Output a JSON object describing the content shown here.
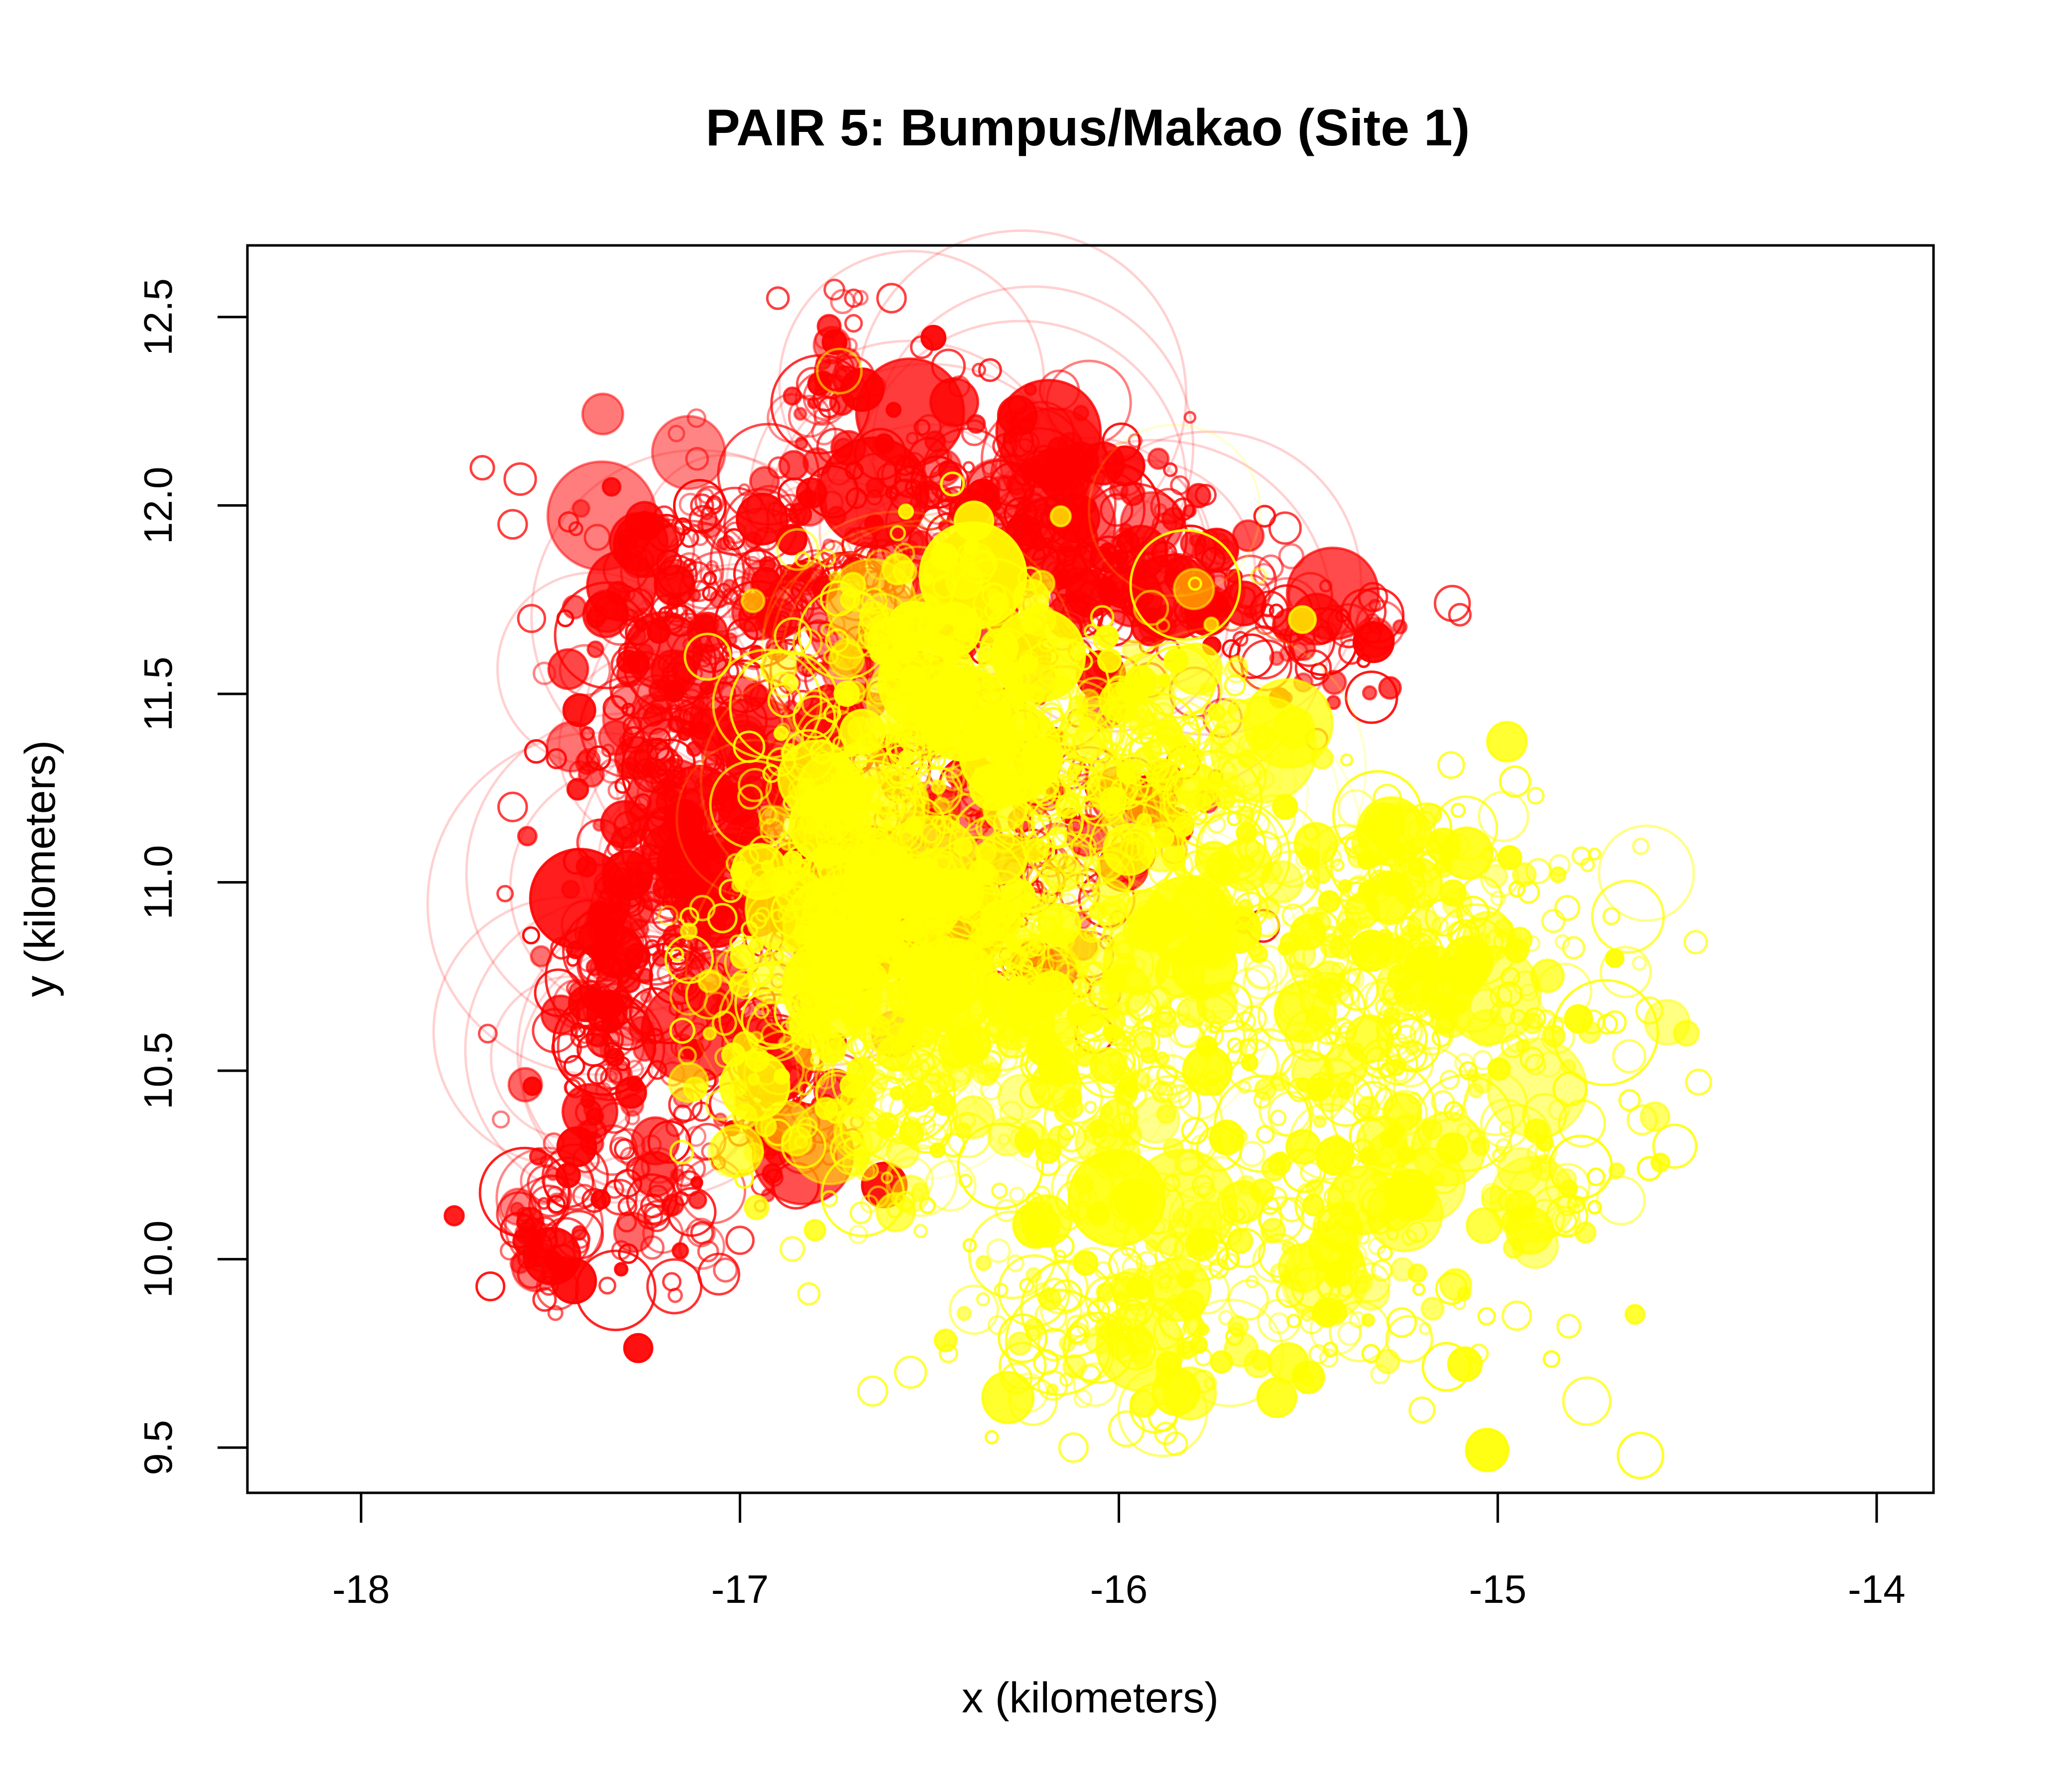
{
  "chart_data": {
    "type": "scatter",
    "title": "PAIR 5: Bumpus/Makao (Site 1)",
    "xlabel": "x (kilometers)",
    "ylabel": "y (kilometers)",
    "xlim": [
      -18.3,
      -13.85
    ],
    "ylim": [
      9.38,
      12.69
    ],
    "x_ticks": [
      {
        "value": -18,
        "label": "-18"
      },
      {
        "value": -17,
        "label": "-17"
      },
      {
        "value": -16,
        "label": "-16"
      },
      {
        "value": -15,
        "label": "-15"
      },
      {
        "value": -14,
        "label": "-14"
      }
    ],
    "y_ticks": [
      {
        "value": 9.5,
        "label": "9.5"
      },
      {
        "value": 10.0,
        "label": "10.0"
      },
      {
        "value": 10.5,
        "label": "10.5"
      },
      {
        "value": 11.0,
        "label": "11.0"
      },
      {
        "value": 11.5,
        "label": "11.5"
      },
      {
        "value": 12.0,
        "label": "12.0"
      },
      {
        "value": 12.5,
        "label": "12.5"
      }
    ],
    "grid": false,
    "legend": "none",
    "series": [
      {
        "color": "#ff0000",
        "clusters": [
          {
            "x": -17.2,
            "y": 11.35,
            "sx": 0.12,
            "sy": 0.35,
            "n": 260
          },
          {
            "x": -17.35,
            "y": 10.7,
            "sx": 0.08,
            "sy": 0.2,
            "n": 120
          },
          {
            "x": -16.85,
            "y": 11.8,
            "sx": 0.22,
            "sy": 0.18,
            "n": 200
          },
          {
            "x": -16.35,
            "y": 12.05,
            "sx": 0.18,
            "sy": 0.15,
            "n": 160
          },
          {
            "x": -16.0,
            "y": 11.85,
            "sx": 0.18,
            "sy": 0.12,
            "n": 110
          },
          {
            "x": -17.0,
            "y": 11.0,
            "sx": 0.15,
            "sy": 0.2,
            "n": 140
          },
          {
            "x": -16.6,
            "y": 11.3,
            "sx": 0.25,
            "sy": 0.3,
            "n": 150
          },
          {
            "x": -16.1,
            "y": 11.1,
            "sx": 0.2,
            "sy": 0.2,
            "n": 90
          },
          {
            "x": -17.3,
            "y": 10.2,
            "sx": 0.15,
            "sy": 0.15,
            "n": 90
          },
          {
            "x": -16.9,
            "y": 10.35,
            "sx": 0.12,
            "sy": 0.12,
            "n": 60
          },
          {
            "x": -15.45,
            "y": 11.65,
            "sx": 0.1,
            "sy": 0.08,
            "n": 50
          },
          {
            "x": -15.75,
            "y": 11.75,
            "sx": 0.12,
            "sy": 0.1,
            "n": 40
          },
          {
            "x": -16.75,
            "y": 12.35,
            "sx": 0.05,
            "sy": 0.15,
            "n": 35
          },
          {
            "x": -17.5,
            "y": 10.05,
            "sx": 0.06,
            "sy": 0.08,
            "n": 40
          }
        ],
        "sparse": [
          [
            -17.68,
            12.1
          ],
          [
            -17.6,
            11.95
          ],
          [
            -17.58,
            12.07
          ],
          [
            -17.55,
            11.7
          ],
          [
            -17.6,
            11.2
          ],
          [
            -17.62,
            10.97
          ],
          [
            -17.2,
            11.97
          ],
          [
            -17.1,
            12.0
          ],
          [
            -15.12,
            11.74
          ],
          [
            -15.1,
            11.71
          ],
          [
            -16.7,
            12.55
          ],
          [
            -16.6,
            12.55
          ],
          [
            -16.52,
            12.42
          ],
          [
            -16.45,
            12.37
          ],
          [
            -16.9,
            12.55
          ],
          [
            -17.55,
            9.96
          ],
          [
            -17.35,
            9.93
          ],
          [
            -17.18,
            9.94
          ],
          [
            -17.1,
            10.07
          ],
          [
            -17.0,
            10.05
          ]
        ]
      },
      {
        "color": "#ffff00",
        "clusters": [
          {
            "x": -16.7,
            "y": 11.05,
            "sx": 0.16,
            "sy": 0.25,
            "n": 300
          },
          {
            "x": -16.5,
            "y": 10.8,
            "sx": 0.2,
            "sy": 0.18,
            "n": 240
          },
          {
            "x": -16.5,
            "y": 11.55,
            "sx": 0.2,
            "sy": 0.2,
            "n": 190
          },
          {
            "x": -16.1,
            "y": 11.35,
            "sx": 0.18,
            "sy": 0.18,
            "n": 130
          },
          {
            "x": -15.8,
            "y": 11.3,
            "sx": 0.15,
            "sy": 0.2,
            "n": 120
          },
          {
            "x": -16.2,
            "y": 10.65,
            "sx": 0.22,
            "sy": 0.15,
            "n": 160
          },
          {
            "x": -15.8,
            "y": 10.8,
            "sx": 0.25,
            "sy": 0.25,
            "n": 150
          },
          {
            "x": -15.3,
            "y": 10.75,
            "sx": 0.15,
            "sy": 0.15,
            "n": 130
          },
          {
            "x": -15.4,
            "y": 10.3,
            "sx": 0.2,
            "sy": 0.2,
            "n": 110
          },
          {
            "x": -15.95,
            "y": 10.1,
            "sx": 0.25,
            "sy": 0.2,
            "n": 120
          },
          {
            "x": -16.0,
            "y": 9.8,
            "sx": 0.18,
            "sy": 0.12,
            "n": 90
          },
          {
            "x": -15.5,
            "y": 9.9,
            "sx": 0.2,
            "sy": 0.12,
            "n": 80
          },
          {
            "x": -15.0,
            "y": 10.6,
            "sx": 0.2,
            "sy": 0.3,
            "n": 90
          },
          {
            "x": -14.85,
            "y": 10.4,
            "sx": 0.15,
            "sy": 0.35,
            "n": 60
          },
          {
            "x": -16.6,
            "y": 10.3,
            "sx": 0.2,
            "sy": 0.15,
            "n": 80
          },
          {
            "x": -15.2,
            "y": 11.0,
            "sx": 0.2,
            "sy": 0.12,
            "n": 70
          },
          {
            "x": -16.9,
            "y": 10.6,
            "sx": 0.15,
            "sy": 0.15,
            "n": 60
          }
        ],
        "sparse": [
          [
            -14.47,
            10.47
          ],
          [
            -14.6,
            10.66
          ],
          [
            -14.7,
            10.91
          ],
          [
            -14.9,
            11.23
          ],
          [
            -14.78,
            11.07
          ],
          [
            -14.75,
            10.63
          ],
          [
            -14.82,
            10.1
          ],
          [
            -16.12,
            9.5
          ],
          [
            -15.98,
            9.55
          ],
          [
            -15.85,
            9.51
          ],
          [
            -16.55,
            9.7
          ],
          [
            -16.65,
            9.65
          ],
          [
            -15.05,
            9.75
          ],
          [
            -14.95,
            9.85
          ],
          [
            -15.2,
            9.6
          ],
          [
            -16.45,
            9.75
          ]
        ]
      }
    ]
  }
}
